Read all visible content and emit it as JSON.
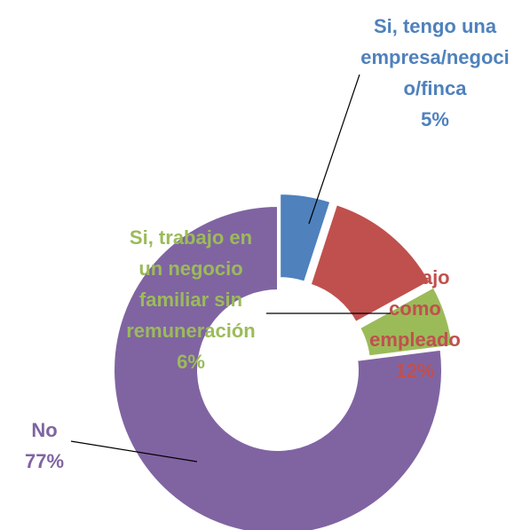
{
  "chart_data": {
    "type": "donut",
    "categories": [
      "Si, tengo una empresa/negocio/finca",
      "Trabajo como empleado",
      "Si, trabajo en un negocio familiar sin remuneración",
      "No"
    ],
    "values": [
      5,
      12,
      6,
      77
    ],
    "value_labels": [
      "5%",
      "12%",
      "6%",
      "77%"
    ],
    "colors": [
      "#4f81bd",
      "#c0504d",
      "#9bbb59",
      "#8064a2"
    ]
  }
}
